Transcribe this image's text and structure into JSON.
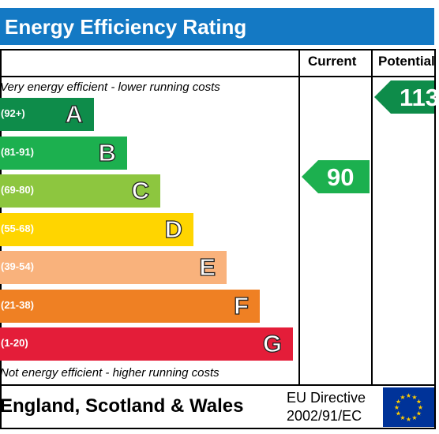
{
  "title": "Energy Efficiency Rating",
  "columns": {
    "current": "Current",
    "potential": "Potential"
  },
  "notes": {
    "top": "Very energy efficient - lower running costs",
    "bottom": "Not energy efficient - higher running costs"
  },
  "footer": {
    "country": "England, Scotland & Wales",
    "eu_line1": "EU Directive",
    "eu_line2": "2002/91/EC"
  },
  "chart_data": {
    "type": "bar",
    "categories": [
      "A",
      "B",
      "C",
      "D",
      "E",
      "F",
      "G"
    ],
    "bands": [
      {
        "letter": "A",
        "range": "(92+)",
        "color": "#0e8c4a"
      },
      {
        "letter": "B",
        "range": "(81-91)",
        "color": "#1cb04f"
      },
      {
        "letter": "C",
        "range": "(69-80)",
        "color": "#8dc63f"
      },
      {
        "letter": "D",
        "range": "(55-68)",
        "color": "#ffd500"
      },
      {
        "letter": "E",
        "range": "(39-54)",
        "color": "#f9b27c"
      },
      {
        "letter": "F",
        "range": "(21-38)",
        "color": "#ef8023"
      },
      {
        "letter": "G",
        "range": "(1-20)",
        "color": "#e41d39"
      }
    ],
    "current": {
      "value": "90",
      "band": "B",
      "color": "#1cb04f"
    },
    "potential": {
      "value": "113",
      "band": "A",
      "color": "#0e8c4a"
    }
  }
}
